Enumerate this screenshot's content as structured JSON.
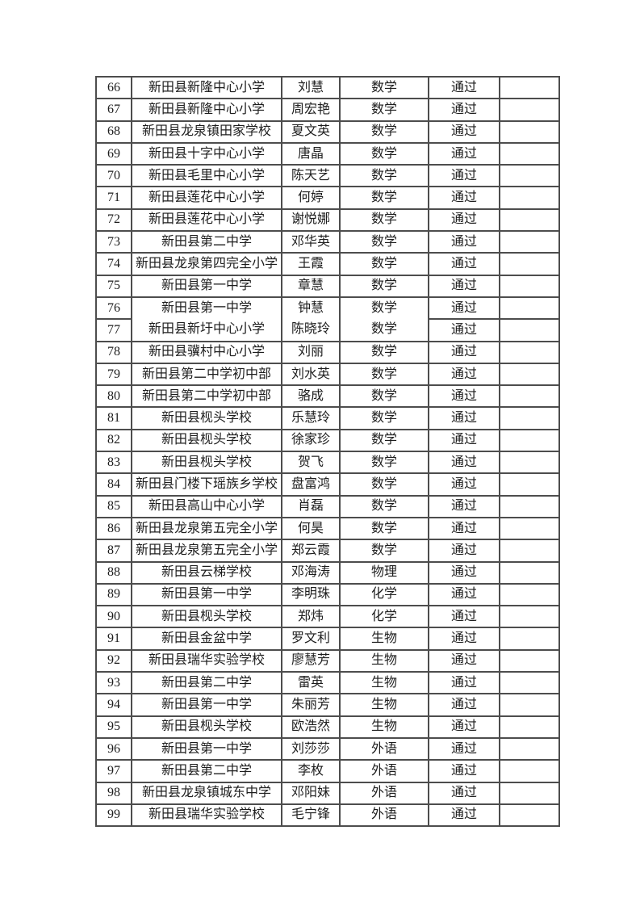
{
  "table": {
    "rows": [
      {
        "no": "66",
        "school": "新田县新隆中心小学",
        "name": "刘慧",
        "subject": "数学",
        "status": "通过",
        "note": ""
      },
      {
        "no": "67",
        "school": "新田县新隆中心小学",
        "name": "周宏艳",
        "subject": "数学",
        "status": "通过",
        "note": ""
      },
      {
        "no": "68",
        "school": "新田县龙泉镇田家学校",
        "name": "夏文英",
        "subject": "数学",
        "status": "通过",
        "note": ""
      },
      {
        "no": "69",
        "school": "新田县十字中心小学",
        "name": "唐晶",
        "subject": "数学",
        "status": "通过",
        "note": ""
      },
      {
        "no": "70",
        "school": "新田县毛里中心小学",
        "name": "陈天艺",
        "subject": "数学",
        "status": "通过",
        "note": ""
      },
      {
        "no": "71",
        "school": "新田县莲花中心小学",
        "name": "何婷",
        "subject": "数学",
        "status": "通过",
        "note": ""
      },
      {
        "no": "72",
        "school": "新田县莲花中心小学",
        "name": "谢悦娜",
        "subject": "数学",
        "status": "通过",
        "note": ""
      },
      {
        "no": "73",
        "school": "新田县第二中学",
        "name": "邓华英",
        "subject": "数学",
        "status": "通过",
        "note": ""
      },
      {
        "no": "74",
        "school": "新田县龙泉第四完全小学",
        "name": "王霞",
        "subject": "数学",
        "status": "通过",
        "note": ""
      },
      {
        "no": "75",
        "school": "新田县第一中学",
        "name": "章慧",
        "subject": "数学",
        "status": "通过",
        "note": ""
      },
      {
        "no": "76",
        "school": "新田县第一中学",
        "name": "钟慧",
        "subject": "数学",
        "status": "通过",
        "note": ""
      },
      {
        "no": "77",
        "school": "新田县新圩中心小学",
        "name": "陈晓玲",
        "subject": "数学",
        "status": "通过",
        "note": ""
      },
      {
        "no": "78",
        "school": "新田县骥村中心小学",
        "name": "刘丽",
        "subject": "数学",
        "status": "通过",
        "note": ""
      },
      {
        "no": "79",
        "school": "新田县第二中学初中部",
        "name": "刘水英",
        "subject": "数学",
        "status": "通过",
        "note": ""
      },
      {
        "no": "80",
        "school": "新田县第二中学初中部",
        "name": "骆成",
        "subject": "数学",
        "status": "通过",
        "note": ""
      },
      {
        "no": "81",
        "school": "新田县枧头学校",
        "name": "乐慧玲",
        "subject": "数学",
        "status": "通过",
        "note": ""
      },
      {
        "no": "82",
        "school": "新田县枧头学校",
        "name": "徐家珍",
        "subject": "数学",
        "status": "通过",
        "note": ""
      },
      {
        "no": "83",
        "school": "新田县枧头学校",
        "name": "贺飞",
        "subject": "数学",
        "status": "通过",
        "note": ""
      },
      {
        "no": "84",
        "school": "新田县门楼下瑶族乡学校",
        "name": "盘富鸿",
        "subject": "数学",
        "status": "通过",
        "note": ""
      },
      {
        "no": "85",
        "school": "新田县高山中心小学",
        "name": "肖磊",
        "subject": "数学",
        "status": "通过",
        "note": ""
      },
      {
        "no": "86",
        "school": "新田县龙泉第五完全小学",
        "name": "何昊",
        "subject": "数学",
        "status": "通过",
        "note": ""
      },
      {
        "no": "87",
        "school": "新田县龙泉第五完全小学",
        "name": "郑云霞",
        "subject": "数学",
        "status": "通过",
        "note": ""
      },
      {
        "no": "88",
        "school": "新田县云梯学校",
        "name": "邓海涛",
        "subject": "物理",
        "status": "通过",
        "note": ""
      },
      {
        "no": "89",
        "school": "新田县第一中学",
        "name": "李明珠",
        "subject": "化学",
        "status": "通过",
        "note": ""
      },
      {
        "no": "90",
        "school": "新田县枧头学校",
        "name": "郑炜",
        "subject": "化学",
        "status": "通过",
        "note": ""
      },
      {
        "no": "91",
        "school": "新田县金盆中学",
        "name": "罗文利",
        "subject": "生物",
        "status": "通过",
        "note": ""
      },
      {
        "no": "92",
        "school": "新田县瑞华实验学校",
        "name": "廖慧芳",
        "subject": "生物",
        "status": "通过",
        "note": ""
      },
      {
        "no": "93",
        "school": "新田县第二中学",
        "name": "雷英",
        "subject": "生物",
        "status": "通过",
        "note": ""
      },
      {
        "no": "94",
        "school": "新田县第一中学",
        "name": "朱丽芳",
        "subject": "生物",
        "status": "通过",
        "note": ""
      },
      {
        "no": "95",
        "school": "新田县枧头学校",
        "name": "欧浩然",
        "subject": "生物",
        "status": "通过",
        "note": ""
      },
      {
        "no": "96",
        "school": "新田县第一中学",
        "name": "刘莎莎",
        "subject": "外语",
        "status": "通过",
        "note": ""
      },
      {
        "no": "97",
        "school": "新田县第二中学",
        "name": "李枚",
        "subject": "外语",
        "status": "通过",
        "note": ""
      },
      {
        "no": "98",
        "school": "新田县龙泉镇城东中学",
        "name": "邓阳妹",
        "subject": "外语",
        "status": "通过",
        "note": ""
      },
      {
        "no": "99",
        "school": "新田县瑞华实验学校",
        "name": "毛宁锋",
        "subject": "外语",
        "status": "通过",
        "note": ""
      }
    ]
  }
}
